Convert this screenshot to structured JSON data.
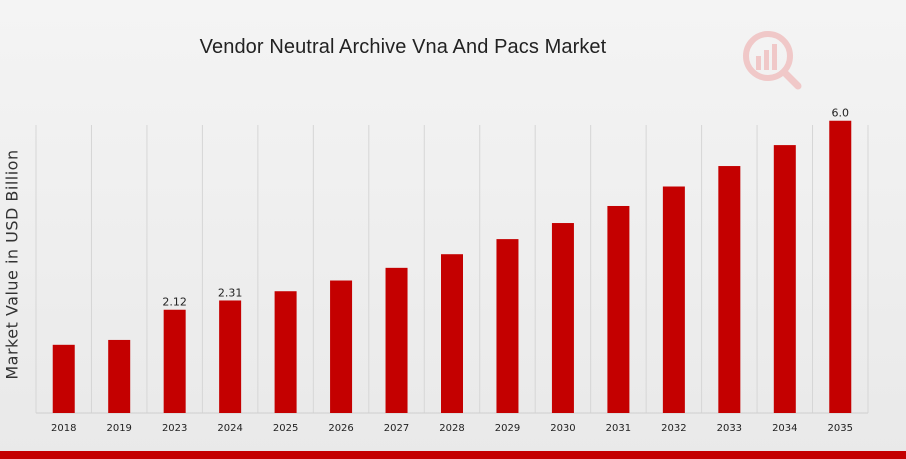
{
  "chart_data": {
    "type": "bar",
    "title": "Vendor Neutral Archive Vna And Pacs Market",
    "xlabel": "",
    "ylabel": "Market Value in USD Billion",
    "categories": [
      "2018",
      "2019",
      "2023",
      "2024",
      "2025",
      "2026",
      "2027",
      "2028",
      "2029",
      "2030",
      "2031",
      "2032",
      "2033",
      "2034",
      "2035"
    ],
    "values": [
      1.4,
      1.5,
      2.12,
      2.31,
      2.5,
      2.72,
      2.98,
      3.26,
      3.57,
      3.9,
      4.25,
      4.65,
      5.07,
      5.5,
      6.0
    ],
    "data_labels": {
      "2": "2.12",
      "3": "2.31",
      "14": "6.0"
    },
    "ylim": [
      0,
      6.2
    ],
    "grid": "vertical",
    "bar_color": "#c40000"
  },
  "logo": {
    "name": "market-research-logo-icon"
  },
  "colors": {
    "accent": "#c40000"
  }
}
